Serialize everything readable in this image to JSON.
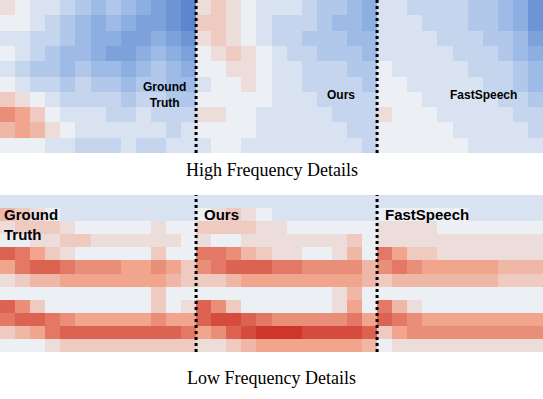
{
  "chart_data": [
    {
      "type": "heatmap",
      "title": "High Frequency Details",
      "tick_labels": false,
      "zlim": [
        0,
        1
      ],
      "series": [
        {
          "name": "Ground Truth",
          "z": [
            [
              0.55,
              0.5,
              0.45,
              0.45,
              0.4,
              0.35,
              0.3,
              0.35,
              0.3,
              0.25,
              0.2,
              0.15,
              0.1
            ],
            [
              0.5,
              0.5,
              0.45,
              0.4,
              0.35,
              0.3,
              0.25,
              0.3,
              0.25,
              0.2,
              0.2,
              0.15,
              0.1
            ],
            [
              0.45,
              0.45,
              0.4,
              0.4,
              0.35,
              0.3,
              0.25,
              0.25,
              0.2,
              0.2,
              0.25,
              0.2,
              0.15
            ],
            [
              0.5,
              0.45,
              0.4,
              0.35,
              0.3,
              0.3,
              0.25,
              0.2,
              0.2,
              0.25,
              0.3,
              0.25,
              0.2
            ],
            [
              0.45,
              0.4,
              0.35,
              0.35,
              0.3,
              0.35,
              0.3,
              0.3,
              0.25,
              0.3,
              0.35,
              0.3,
              0.25
            ],
            [
              0.5,
              0.45,
              0.4,
              0.4,
              0.35,
              0.4,
              0.35,
              0.35,
              0.3,
              0.35,
              0.35,
              0.3,
              0.3
            ],
            [
              0.6,
              0.55,
              0.5,
              0.45,
              0.4,
              0.4,
              0.4,
              0.4,
              0.35,
              0.4,
              0.4,
              0.35,
              0.35
            ],
            [
              0.75,
              0.7,
              0.6,
              0.5,
              0.45,
              0.45,
              0.45,
              0.4,
              0.4,
              0.45,
              0.4,
              0.4,
              0.4
            ],
            [
              0.65,
              0.7,
              0.65,
              0.55,
              0.5,
              0.45,
              0.45,
              0.45,
              0.45,
              0.45,
              0.45,
              0.4,
              0.45
            ],
            [
              0.5,
              0.5,
              0.5,
              0.45,
              0.45,
              0.4,
              0.4,
              0.4,
              0.45,
              0.4,
              0.4,
              0.45,
              0.45
            ]
          ]
        },
        {
          "name": "Ours",
          "z": [
            [
              0.55,
              0.6,
              0.55,
              0.5,
              0.45,
              0.45,
              0.45,
              0.4,
              0.35,
              0.35,
              0.3,
              0.25
            ],
            [
              0.6,
              0.6,
              0.55,
              0.5,
              0.45,
              0.4,
              0.4,
              0.4,
              0.35,
              0.3,
              0.3,
              0.25
            ],
            [
              0.55,
              0.6,
              0.55,
              0.5,
              0.45,
              0.4,
              0.4,
              0.35,
              0.35,
              0.35,
              0.3,
              0.3
            ],
            [
              0.5,
              0.55,
              0.6,
              0.55,
              0.5,
              0.45,
              0.4,
              0.4,
              0.35,
              0.35,
              0.35,
              0.3
            ],
            [
              0.5,
              0.5,
              0.55,
              0.55,
              0.5,
              0.45,
              0.45,
              0.4,
              0.4,
              0.4,
              0.35,
              0.35
            ],
            [
              0.45,
              0.5,
              0.5,
              0.55,
              0.5,
              0.45,
              0.45,
              0.4,
              0.4,
              0.4,
              0.4,
              0.35
            ],
            [
              0.5,
              0.5,
              0.5,
              0.5,
              0.5,
              0.45,
              0.45,
              0.45,
              0.4,
              0.4,
              0.4,
              0.4
            ],
            [
              0.55,
              0.55,
              0.5,
              0.5,
              0.45,
              0.45,
              0.45,
              0.45,
              0.45,
              0.4,
              0.4,
              0.4
            ],
            [
              0.5,
              0.5,
              0.5,
              0.5,
              0.45,
              0.45,
              0.45,
              0.45,
              0.45,
              0.45,
              0.4,
              0.4
            ],
            [
              0.45,
              0.5,
              0.5,
              0.45,
              0.45,
              0.45,
              0.45,
              0.45,
              0.45,
              0.45,
              0.45,
              0.4
            ]
          ]
        },
        {
          "name": "FastSpeech",
          "z": [
            [
              0.45,
              0.45,
              0.4,
              0.4,
              0.4,
              0.4,
              0.35,
              0.35,
              0.3,
              0.25,
              0.15
            ],
            [
              0.45,
              0.45,
              0.45,
              0.4,
              0.4,
              0.4,
              0.35,
              0.35,
              0.3,
              0.25,
              0.15
            ],
            [
              0.45,
              0.45,
              0.45,
              0.45,
              0.4,
              0.4,
              0.4,
              0.35,
              0.35,
              0.3,
              0.2
            ],
            [
              0.45,
              0.45,
              0.45,
              0.45,
              0.45,
              0.4,
              0.4,
              0.4,
              0.35,
              0.3,
              0.25
            ],
            [
              0.5,
              0.45,
              0.45,
              0.45,
              0.45,
              0.45,
              0.4,
              0.4,
              0.4,
              0.35,
              0.3
            ],
            [
              0.5,
              0.5,
              0.45,
              0.45,
              0.45,
              0.45,
              0.45,
              0.4,
              0.4,
              0.35,
              0.3
            ],
            [
              0.5,
              0.5,
              0.5,
              0.45,
              0.45,
              0.45,
              0.45,
              0.45,
              0.4,
              0.4,
              0.35
            ],
            [
              0.55,
              0.5,
              0.5,
              0.5,
              0.45,
              0.45,
              0.45,
              0.45,
              0.45,
              0.4,
              0.4
            ],
            [
              0.5,
              0.5,
              0.5,
              0.5,
              0.5,
              0.45,
              0.45,
              0.45,
              0.45,
              0.45,
              0.4
            ],
            [
              0.5,
              0.5,
              0.5,
              0.5,
              0.5,
              0.5,
              0.45,
              0.45,
              0.45,
              0.45,
              0.45
            ]
          ]
        }
      ]
    },
    {
      "type": "heatmap",
      "title": "Low Frequency Details",
      "tick_labels": false,
      "zlim": [
        0,
        1
      ],
      "series": [
        {
          "name": "Ground Truth",
          "z": [
            [
              0.45,
              0.45,
              0.45,
              0.45,
              0.45,
              0.45,
              0.45,
              0.45,
              0.45,
              0.45,
              0.45,
              0.45,
              0.45
            ],
            [
              0.65,
              0.6,
              0.55,
              0.5,
              0.45,
              0.45,
              0.45,
              0.45,
              0.45,
              0.45,
              0.45,
              0.45,
              0.45
            ],
            [
              0.55,
              0.6,
              0.6,
              0.6,
              0.55,
              0.5,
              0.5,
              0.5,
              0.5,
              0.5,
              0.55,
              0.5,
              0.5
            ],
            [
              0.5,
              0.5,
              0.55,
              0.55,
              0.6,
              0.6,
              0.55,
              0.55,
              0.55,
              0.55,
              0.55,
              0.55,
              0.5
            ],
            [
              0.85,
              0.8,
              0.7,
              0.6,
              0.55,
              0.5,
              0.5,
              0.5,
              0.5,
              0.5,
              0.6,
              0.5,
              0.5
            ],
            [
              0.7,
              0.8,
              0.85,
              0.85,
              0.8,
              0.75,
              0.75,
              0.75,
              0.7,
              0.7,
              0.75,
              0.7,
              0.6
            ],
            [
              0.55,
              0.6,
              0.65,
              0.65,
              0.7,
              0.7,
              0.7,
              0.7,
              0.7,
              0.7,
              0.7,
              0.65,
              0.6
            ],
            [
              0.5,
              0.5,
              0.5,
              0.5,
              0.5,
              0.5,
              0.5,
              0.5,
              0.5,
              0.5,
              0.6,
              0.5,
              0.5
            ],
            [
              0.85,
              0.75,
              0.6,
              0.5,
              0.5,
              0.5,
              0.5,
              0.5,
              0.5,
              0.5,
              0.6,
              0.5,
              0.55
            ],
            [
              0.8,
              0.85,
              0.85,
              0.8,
              0.75,
              0.7,
              0.7,
              0.7,
              0.7,
              0.7,
              0.75,
              0.7,
              0.7
            ],
            [
              0.6,
              0.65,
              0.7,
              0.8,
              0.85,
              0.85,
              0.85,
              0.85,
              0.85,
              0.85,
              0.85,
              0.85,
              0.8
            ],
            [
              0.5,
              0.5,
              0.5,
              0.55,
              0.6,
              0.6,
              0.6,
              0.6,
              0.6,
              0.6,
              0.6,
              0.6,
              0.6
            ]
          ]
        },
        {
          "name": "Ours",
          "z": [
            [
              0.45,
              0.45,
              0.45,
              0.45,
              0.45,
              0.45,
              0.45,
              0.45,
              0.45,
              0.45,
              0.45,
              0.45
            ],
            [
              0.5,
              0.55,
              0.6,
              0.55,
              0.5,
              0.45,
              0.45,
              0.45,
              0.45,
              0.45,
              0.45,
              0.45
            ],
            [
              0.6,
              0.6,
              0.6,
              0.6,
              0.55,
              0.55,
              0.5,
              0.5,
              0.5,
              0.5,
              0.5,
              0.5
            ],
            [
              0.55,
              0.5,
              0.5,
              0.55,
              0.55,
              0.55,
              0.55,
              0.55,
              0.55,
              0.55,
              0.6,
              0.5
            ],
            [
              0.8,
              0.8,
              0.75,
              0.65,
              0.6,
              0.55,
              0.55,
              0.5,
              0.5,
              0.55,
              0.65,
              0.5
            ],
            [
              0.75,
              0.8,
              0.85,
              0.85,
              0.85,
              0.8,
              0.8,
              0.75,
              0.75,
              0.75,
              0.75,
              0.65
            ],
            [
              0.6,
              0.6,
              0.65,
              0.7,
              0.7,
              0.7,
              0.7,
              0.7,
              0.7,
              0.7,
              0.7,
              0.65
            ],
            [
              0.5,
              0.5,
              0.5,
              0.5,
              0.5,
              0.5,
              0.5,
              0.5,
              0.5,
              0.55,
              0.65,
              0.5
            ],
            [
              0.85,
              0.75,
              0.6,
              0.5,
              0.5,
              0.5,
              0.5,
              0.5,
              0.5,
              0.55,
              0.7,
              0.5
            ],
            [
              0.85,
              0.9,
              0.9,
              0.85,
              0.8,
              0.75,
              0.75,
              0.75,
              0.75,
              0.75,
              0.8,
              0.7
            ],
            [
              0.7,
              0.75,
              0.85,
              0.9,
              0.95,
              0.95,
              0.95,
              0.9,
              0.9,
              0.9,
              0.9,
              0.85
            ],
            [
              0.55,
              0.55,
              0.6,
              0.65,
              0.7,
              0.7,
              0.7,
              0.7,
              0.7,
              0.7,
              0.7,
              0.65
            ]
          ]
        },
        {
          "name": "FastSpeech",
          "z": [
            [
              0.45,
              0.45,
              0.45,
              0.45,
              0.45,
              0.45,
              0.45,
              0.45,
              0.45,
              0.45,
              0.45
            ],
            [
              0.5,
              0.5,
              0.5,
              0.5,
              0.5,
              0.5,
              0.45,
              0.45,
              0.45,
              0.45,
              0.45
            ],
            [
              0.55,
              0.55,
              0.55,
              0.55,
              0.5,
              0.5,
              0.5,
              0.5,
              0.5,
              0.5,
              0.5
            ],
            [
              0.55,
              0.55,
              0.55,
              0.55,
              0.55,
              0.55,
              0.55,
              0.55,
              0.55,
              0.55,
              0.55
            ],
            [
              0.8,
              0.7,
              0.6,
              0.6,
              0.55,
              0.55,
              0.55,
              0.55,
              0.55,
              0.55,
              0.55
            ],
            [
              0.75,
              0.8,
              0.75,
              0.7,
              0.7,
              0.7,
              0.7,
              0.7,
              0.65,
              0.65,
              0.65
            ],
            [
              0.6,
              0.65,
              0.65,
              0.65,
              0.65,
              0.65,
              0.65,
              0.65,
              0.6,
              0.6,
              0.6
            ],
            [
              0.5,
              0.5,
              0.5,
              0.5,
              0.5,
              0.5,
              0.5,
              0.5,
              0.5,
              0.5,
              0.5
            ],
            [
              0.8,
              0.65,
              0.55,
              0.5,
              0.5,
              0.5,
              0.5,
              0.5,
              0.5,
              0.5,
              0.5
            ],
            [
              0.85,
              0.8,
              0.75,
              0.7,
              0.7,
              0.7,
              0.7,
              0.7,
              0.7,
              0.7,
              0.7
            ],
            [
              0.6,
              0.7,
              0.75,
              0.75,
              0.75,
              0.75,
              0.75,
              0.75,
              0.75,
              0.75,
              0.75
            ],
            [
              0.5,
              0.55,
              0.55,
              0.55,
              0.55,
              0.55,
              0.55,
              0.55,
              0.55,
              0.55,
              0.55
            ]
          ]
        }
      ]
    }
  ]
}
